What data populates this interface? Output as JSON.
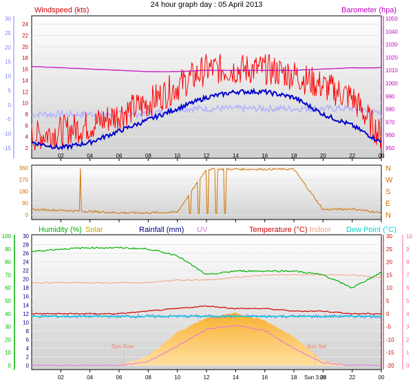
{
  "title": "24 hour graph day : 05 April 2013",
  "x_ticks": [
    "02",
    "04",
    "06",
    "08",
    "10",
    "12",
    "14",
    "16",
    "18",
    "20",
    "22",
    "00"
  ],
  "colors": {
    "wind": "#ff0000",
    "wind_avg": "#0000cc",
    "wind_light": "#b0b0ff",
    "baro": "#c000c0",
    "dir": "#d07000",
    "humidity": "#00b000",
    "solar": "#c8a000",
    "rain": "#000080",
    "uv": "#e070e0",
    "temperature": "#cc0000",
    "indoor": "#f0a080",
    "dewpoint": "#00d0d0",
    "axis_blue": "#8080ff",
    "axis_pink": "#ff60a0"
  },
  "chart_data": [
    {
      "type": "line",
      "id": "wind-baro",
      "title": "24 hour graph day : 05 April 2013",
      "x": [
        "00:00",
        "02:00",
        "04:00",
        "06:00",
        "08:00",
        "10:00",
        "12:00",
        "14:00",
        "16:00",
        "18:00",
        "20:00",
        "22:00",
        "00:00"
      ],
      "left_axis": {
        "label": "Windspeed (kts)",
        "ylim": [
          2,
          25
        ],
        "ticks": [
          "24",
          "22",
          "20",
          "18",
          "16",
          "14",
          "12",
          "10",
          "8",
          "6",
          "4",
          "2"
        ]
      },
      "far_left_axis": {
        "ylim": [
          -15,
          30
        ],
        "ticks": [
          "30",
          "25",
          "20",
          "15",
          "10",
          "5",
          "0",
          "-5",
          "-10",
          "-15"
        ]
      },
      "right_axis": {
        "label": "Barometer (hpa)",
        "ylim": [
          950,
          1050
        ],
        "ticks": [
          "1050",
          "1040",
          "1030",
          "1020",
          "1010",
          "1000",
          "990",
          "980",
          "970",
          "960",
          "950"
        ]
      },
      "series": [
        {
          "name": "Windspeed (kts)",
          "values": [
            4,
            5,
            6,
            8,
            10,
            13,
            16,
            16,
            16,
            15,
            13,
            11,
            4
          ]
        },
        {
          "name": "",
          "values": [
            3,
            2,
            3,
            5,
            7,
            9,
            11,
            12,
            12,
            11,
            8,
            6,
            3
          ]
        },
        {
          "name": "",
          "values": [
            8,
            8,
            8,
            8,
            8,
            9,
            9,
            9,
            9,
            9,
            9,
            9,
            8
          ]
        },
        {
          "name": "Barometer (hpa)",
          "values": [
            1013,
            1012,
            1011,
            1010,
            1009,
            1009,
            1010,
            1010,
            1010,
            1010,
            1011,
            1012,
            1012
          ]
        }
      ]
    },
    {
      "type": "line",
      "id": "direction",
      "x": [
        "00:00",
        "02:00",
        "04:00",
        "06:00",
        "08:00",
        "10:00",
        "12:00",
        "14:00",
        "16:00",
        "18:00",
        "20:00",
        "22:00",
        "00:00"
      ],
      "left_axis": {
        "ylim": [
          0,
          360
        ],
        "ticks": [
          "360",
          "270",
          "180",
          "90",
          "0"
        ]
      },
      "right_axis": {
        "ticks": [
          "N",
          "W",
          "S",
          "E",
          "N"
        ]
      },
      "series": [
        {
          "name": "",
          "values": [
            40,
            35,
            25,
            15,
            15,
            20,
            350,
            350,
            350,
            350,
            40,
            45,
            15
          ]
        }
      ]
    },
    {
      "type": "line",
      "id": "climate",
      "x": [
        "00:00",
        "02:00",
        "04:00",
        "06:00",
        "08:00",
        "10:00",
        "12:00",
        "14:00",
        "16:00",
        "18:00",
        "20:00",
        "22:00",
        "00:00"
      ],
      "header": [
        "Humidity (%)",
        "Solar",
        "Rainfall (mm)",
        "UV",
        "Temperature (°C)",
        "Indoor",
        "Dew Point (°C)"
      ],
      "left_green_axis": {
        "ylim": [
          0,
          100
        ],
        "ticks": [
          "100",
          "90",
          "80",
          "70",
          "60",
          "50",
          "40",
          "30",
          "20",
          "10",
          "0"
        ]
      },
      "left_grey_axis": {
        "ylim": [
          0,
          30
        ],
        "ticks": [
          "30",
          "28",
          "26",
          "24",
          "22",
          "20",
          "18",
          "16",
          "14",
          "12",
          "10",
          "8",
          "6",
          "4",
          "2",
          "0"
        ]
      },
      "right_temp_axis": {
        "ylim": [
          -20,
          30
        ],
        "ticks": [
          "30",
          "25",
          "20",
          "15",
          "10",
          "5",
          "0",
          "-5",
          "-10",
          "-15",
          "-20"
        ]
      },
      "right_uv_axis": {
        "ylim": [
          0,
          10
        ],
        "ticks": [
          "10",
          "9",
          "8",
          "7",
          "6",
          "5",
          "4",
          "3",
          "2",
          "1",
          "0"
        ]
      },
      "annotations": [
        "Sun Rise",
        "Sun Set",
        "Sun 3:08"
      ],
      "series": [
        {
          "name": "Humidity (%)",
          "values": [
            88,
            90,
            91,
            91,
            90,
            85,
            70,
            73,
            73,
            73,
            70,
            60,
            72
          ]
        },
        {
          "name": "Temperature (°C)",
          "values": [
            0,
            0,
            0,
            0,
            1,
            2,
            3,
            2,
            2,
            1,
            1,
            0,
            0
          ]
        },
        {
          "name": "Indoor",
          "values": [
            12,
            12,
            12,
            12,
            12,
            13,
            13,
            14,
            15,
            15,
            15,
            15,
            14
          ]
        },
        {
          "name": "Dew Point (°C)",
          "values": [
            -1,
            -1,
            -1,
            -1,
            -1,
            -1,
            -1,
            -1,
            -1,
            -1,
            -1,
            -1,
            -1
          ]
        },
        {
          "name": "Solar",
          "values": [
            0,
            0,
            0,
            0,
            20,
            70,
            100,
            110,
            95,
            60,
            10,
            0,
            0
          ]
        },
        {
          "name": "UV",
          "values": [
            0,
            0,
            0,
            0,
            0.3,
            1.5,
            2.8,
            3.1,
            2.7,
            1.3,
            0.2,
            0,
            0
          ]
        }
      ]
    }
  ]
}
